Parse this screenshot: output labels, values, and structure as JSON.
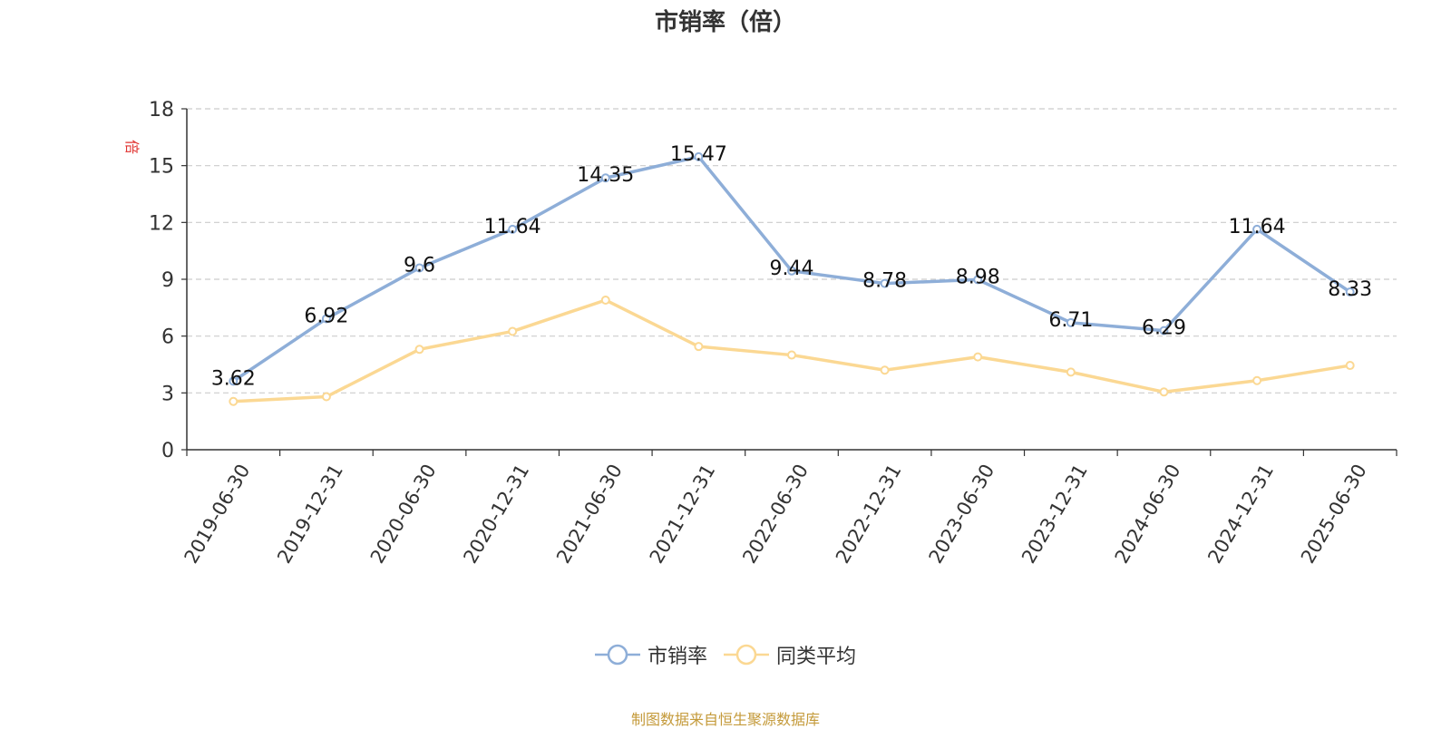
{
  "chart_data": {
    "type": "line",
    "title": "市销率（倍）",
    "unit_label": "倍",
    "categories": [
      "2019-06-30",
      "2019-12-31",
      "2020-06-30",
      "2020-12-31",
      "2021-06-30",
      "2021-12-31",
      "2022-06-30",
      "2022-12-31",
      "2023-06-30",
      "2023-12-31",
      "2024-06-30",
      "2024-12-31",
      "2025-06-30"
    ],
    "ylim": [
      0,
      18
    ],
    "yticks": [
      0,
      3,
      6,
      9,
      12,
      15,
      18
    ],
    "grid": true,
    "legend_position": "bottom-center",
    "series": [
      {
        "name": "市销率",
        "color": "#8eaed8",
        "show_labels": true,
        "values": [
          3.62,
          6.92,
          9.6,
          11.64,
          14.35,
          15.47,
          9.44,
          8.78,
          8.98,
          6.71,
          6.29,
          11.64,
          8.33
        ]
      },
      {
        "name": "同类平均",
        "color": "#fbd893",
        "show_labels": false,
        "values": [
          2.55,
          2.8,
          5.3,
          6.25,
          7.9,
          5.45,
          5.0,
          4.2,
          4.9,
          4.1,
          3.05,
          3.65,
          4.45
        ]
      }
    ]
  },
  "source_note": "制图数据来自恒生聚源数据库"
}
